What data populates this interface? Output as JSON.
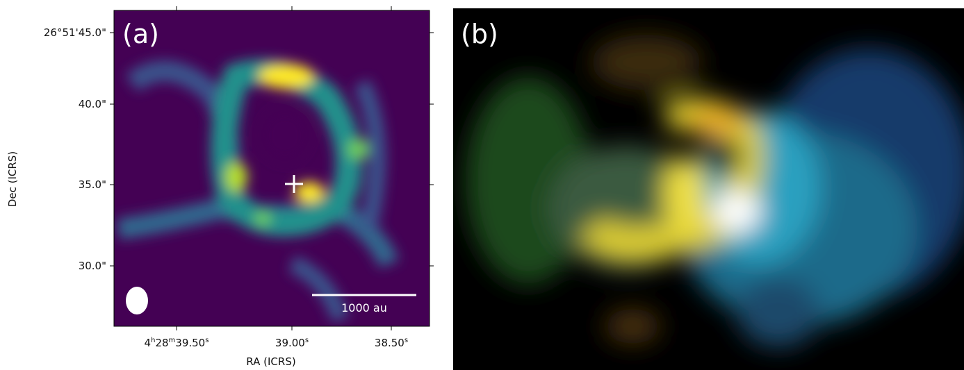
{
  "panels": [
    {
      "label": "(a)",
      "yticks": [
        "26°51'45.0\"",
        "40.0\"",
        "35.0\"",
        "30.0\""
      ],
      "xticks": [
        [
          "4",
          "h",
          "28",
          "m",
          "39.50",
          "s"
        ],
        [
          "39.00",
          "s"
        ],
        [
          "38.50",
          "s"
        ]
      ],
      "xlabel": "RA (ICRS)",
      "ylabel": "Dec (ICRS)",
      "scalebar": "1000 au"
    },
    {
      "label": "(b)"
    }
  ]
}
